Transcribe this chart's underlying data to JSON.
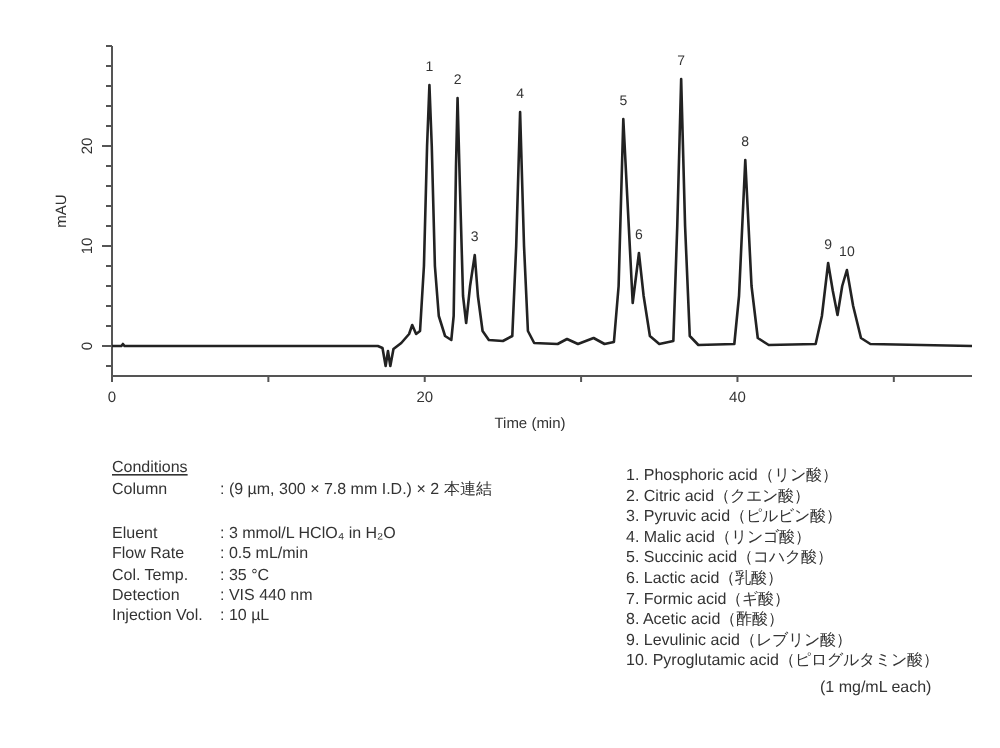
{
  "chart_data": {
    "type": "line",
    "xlabel": "Time (min)",
    "ylabel": "mAU",
    "xlim": [
      0,
      55
    ],
    "ylim": [
      -3,
      30
    ],
    "xticks": [
      0,
      {
        "value": 10,
        "label": null
      },
      20,
      {
        "value": 30,
        "label": null
      },
      40,
      {
        "value": 50,
        "label": null
      }
    ],
    "yticks": [
      {
        "value": -2,
        "label": null
      },
      0,
      {
        "value": 2,
        "label": null
      },
      {
        "value": 4,
        "label": null
      },
      {
        "value": 6,
        "label": null
      },
      {
        "value": 8,
        "label": null
      },
      10,
      {
        "value": 12,
        "label": null
      },
      {
        "value": 14,
        "label": null
      },
      {
        "value": 16,
        "label": null
      },
      {
        "value": 18,
        "label": null
      },
      20,
      {
        "value": 22,
        "label": null
      },
      {
        "value": 24,
        "label": null
      },
      {
        "value": 26,
        "label": null
      },
      {
        "value": 28,
        "label": null
      },
      {
        "value": 30,
        "label": null
      }
    ],
    "grid": false,
    "marker": "none",
    "line_style": "solid",
    "series": [
      {
        "color": "#222222",
        "x": [
          0,
          0.6,
          0.7,
          0.8,
          17,
          17.3,
          17.5,
          17.65,
          17.8,
          18,
          18.5,
          19.0,
          19.2,
          19.45,
          19.7,
          19.95,
          20.15,
          20.3,
          20.45,
          20.65,
          20.9,
          21.3,
          21.7,
          21.85,
          22.0,
          22.1,
          22.25,
          22.45,
          22.65,
          22.9,
          23.2,
          23.4,
          23.7,
          24.1,
          25,
          25.6,
          25.85,
          26.1,
          26.35,
          26.6,
          27,
          28.5,
          29.1,
          29.8,
          30.8,
          31.5,
          32.1,
          32.4,
          32.7,
          32.95,
          33.3,
          33.7,
          34.0,
          34.4,
          35,
          35.9,
          36.15,
          36.4,
          36.65,
          36.95,
          37.5,
          39.8,
          40.1,
          40.5,
          40.9,
          41.3,
          42,
          45,
          45.4,
          45.8,
          46.1,
          46.4,
          46.7,
          47.0,
          47.4,
          47.9,
          48.5,
          55
        ],
        "values": [
          0,
          0,
          0.2,
          0,
          0,
          -0.2,
          -2,
          -0.5,
          -2,
          -0.3,
          0.3,
          1.2,
          2.1,
          1.2,
          1.5,
          8,
          20,
          26.1,
          20,
          8,
          3,
          1,
          0.6,
          3,
          18,
          24.8,
          16,
          5,
          2.3,
          6,
          9.1,
          5,
          1.5,
          0.6,
          0.5,
          1,
          10,
          23.4,
          10,
          1.5,
          0.3,
          0.2,
          0.7,
          0.2,
          0.8,
          0.2,
          0.4,
          6,
          22.7,
          15,
          4.3,
          9.3,
          5,
          1,
          0.2,
          0.5,
          12,
          26.7,
          12,
          1,
          0.1,
          0.2,
          5,
          18.6,
          6,
          0.8,
          0.1,
          0.2,
          3,
          8.3,
          5.5,
          3.1,
          6,
          7.6,
          4,
          0.8,
          0.2,
          0
        ]
      }
    ],
    "annotations": [
      {
        "text": "1",
        "x": 20.3,
        "y": 26.1
      },
      {
        "text": "2",
        "x": 22.1,
        "y": 24.8
      },
      {
        "text": "3",
        "x": 23.2,
        "y": 9.1
      },
      {
        "text": "4",
        "x": 26.1,
        "y": 23.4
      },
      {
        "text": "5",
        "x": 32.7,
        "y": 22.7
      },
      {
        "text": "6",
        "x": 33.7,
        "y": 9.3
      },
      {
        "text": "7",
        "x": 36.4,
        "y": 26.7
      },
      {
        "text": "8",
        "x": 40.5,
        "y": 18.6
      },
      {
        "text": "9",
        "x": 45.8,
        "y": 8.3
      },
      {
        "text": "10",
        "x": 47.0,
        "y": 7.6
      },
      "Conditions",
      "Column",
      ": (9 µm, 300 × 7.8 mm I.D.) × 2 本連結",
      "Eluent",
      ": 3 mmol/L HClO₄ in H₂O",
      "Flow Rate",
      ": 0.5 mL/min",
      "Col. Temp.",
      ": 35 °C",
      "Detection",
      ": VIS 440 nm",
      "Injection Vol.",
      ": 10 µL",
      "1. Phosphoric acid（リン酸）",
      "2. Citric acid（クエン酸）",
      "3. Pyruvic acid（ピルビン酸）",
      "4. Malic acid（リンゴ酸）",
      "5. Succinic acid（コハク酸）",
      "6. Lactic acid（乳酸）",
      "7. Formic acid（ギ酸）",
      "8. Acetic acid（酢酸）",
      "9. Levulinic acid（レブリン酸）",
      "10. Pyroglutamic acid（ピログルタミン酸）",
      "(1 mg/mL each)"
    ]
  }
}
